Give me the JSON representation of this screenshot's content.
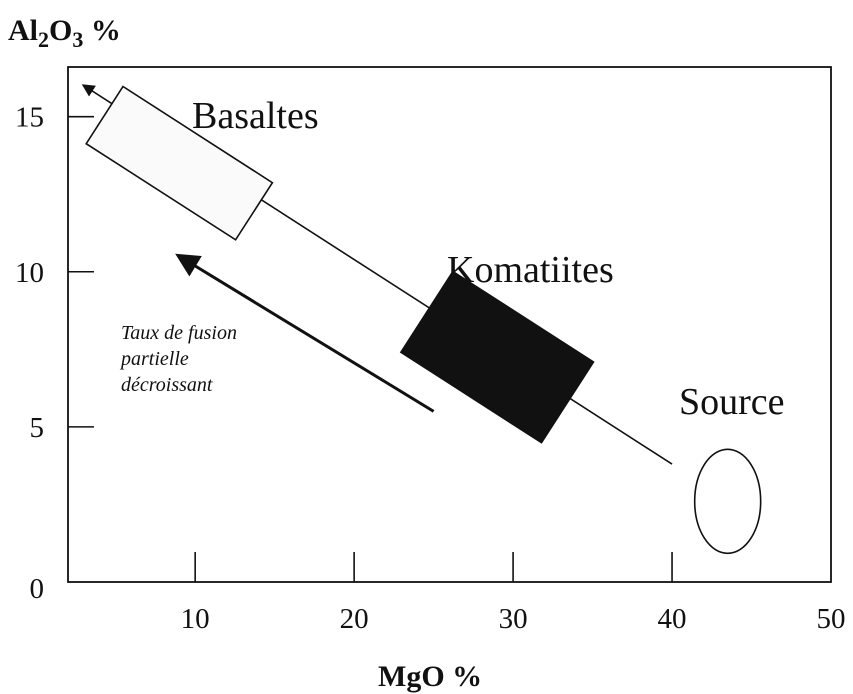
{
  "y_axis_title": {
    "main": "Al",
    "sub1": "2",
    "mid": "O",
    "sub2": "3",
    "unit": " %"
  },
  "x_axis_title": "MgO %",
  "x_ticks": [
    "10",
    "20",
    "30",
    "40",
    "50"
  ],
  "y_ticks": [
    "0",
    "5",
    "10",
    "15"
  ],
  "labels": {
    "basaltes": "Basaltes",
    "komatiites": "Komatiites",
    "source": "Source"
  },
  "note_lines": [
    "Taux de fusion",
    "partielle",
    "décroissant"
  ],
  "chart_data": {
    "type": "diagram",
    "xlabel": "MgO %",
    "ylabel": "Al2O3 %",
    "xlim": [
      2,
      50
    ],
    "ylim": [
      0,
      16.6
    ],
    "regions": [
      {
        "name": "Basaltes",
        "mgo": [
          5,
          13
        ],
        "al2o3": [
          11.5,
          15.5
        ],
        "fill": "white"
      },
      {
        "name": "Komatiites",
        "mgo": [
          25,
          33
        ],
        "al2o3": [
          5.5,
          9
        ],
        "fill": "black"
      },
      {
        "name": "Source",
        "mgo": 43.5,
        "al2o3": 2.6,
        "shape": "ellipse"
      }
    ],
    "trend_line": {
      "from": {
        "mgo": 40,
        "al2o3": 3.8
      },
      "to": {
        "mgo": 3,
        "al2o3": 16
      }
    },
    "direction_arrow": {
      "from": {
        "mgo": 25,
        "al2o3": 5.5
      },
      "to": {
        "mgo": 9,
        "al2o3": 10.5
      }
    }
  }
}
